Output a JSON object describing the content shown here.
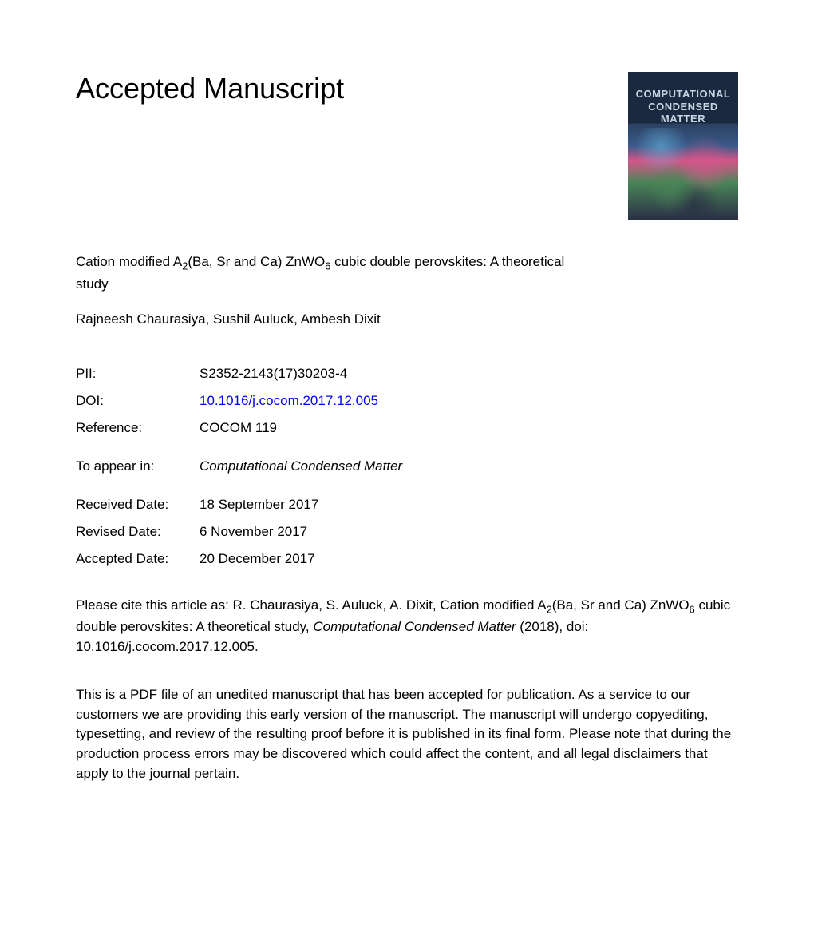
{
  "heading": "Accepted Manuscript",
  "cover": {
    "line1": "COMPUTATIONAL",
    "line2": "CONDENSED MATTER"
  },
  "article": {
    "title_prefix": "Cation modified A",
    "title_sub1": "2",
    "title_mid": "(Ba, Sr and Ca) ZnWO",
    "title_sub2": "6",
    "title_suffix": " cubic double perovskites: A theoretical study",
    "authors": "Rajneesh Chaurasiya, Sushil Auluck, Ambesh Dixit"
  },
  "metadata": {
    "pii": {
      "label": "PII:",
      "value": "S2352-2143(17)30203-4"
    },
    "doi": {
      "label": "DOI:",
      "value": "10.1016/j.cocom.2017.12.005"
    },
    "reference": {
      "label": "Reference:",
      "value": "COCOM 119"
    },
    "appear_in": {
      "label": "To appear in:",
      "value": "Computational Condensed Matter"
    },
    "received": {
      "label": "Received Date:",
      "value": "18 September 2017"
    },
    "revised": {
      "label": "Revised Date:",
      "value": "6 November 2017"
    },
    "accepted": {
      "label": "Accepted Date:",
      "value": "20 December 2017"
    }
  },
  "citation": {
    "prefix": "Please cite this article as: R. Chaurasiya, S. Auluck, A. Dixit, Cation modified A",
    "sub1": "2",
    "mid": "(Ba, Sr and Ca) ZnWO",
    "sub2": "6",
    "after_sub": " cubic double perovskites: A theoretical study, ",
    "journal": "Computational Condensed Matter",
    "suffix": " (2018), doi: 10.1016/j.cocom.2017.12.005."
  },
  "disclaimer": "This is a PDF file of an unedited manuscript that has been accepted for publication. As a service to our customers we are providing this early version of the manuscript. The manuscript will undergo copyediting, typesetting, and review of the resulting proof before it is published in its final form. Please note that during the production process errors may be discovered which could affect the content, and all legal disclaimers that apply to the journal pertain."
}
